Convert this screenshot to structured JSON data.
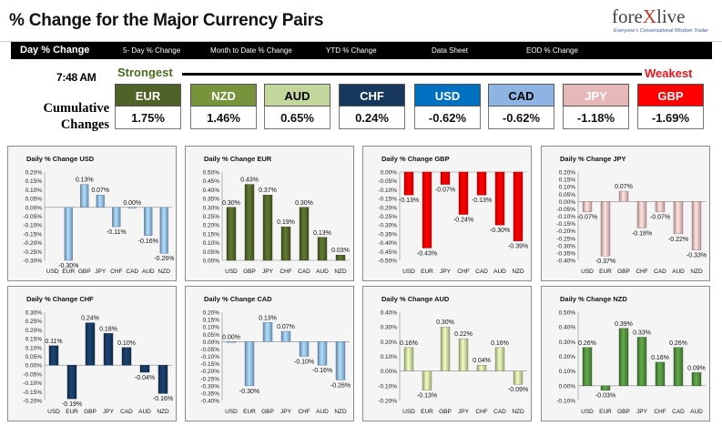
{
  "header": {
    "title": "% Change for the Major Currency Pairs",
    "logo": {
      "text_main": "fore",
      "text_accent": "X",
      "text_end": "live",
      "tagline": "Everyone's Conversational Wisdom Trader"
    }
  },
  "nav": {
    "tabs": [
      {
        "label": "Day % Change",
        "active": true
      },
      {
        "label": "5- Day % Change",
        "active": false
      },
      {
        "label": "Month to Date % Change",
        "active": false
      },
      {
        "label": "YTD % Change",
        "active": false
      },
      {
        "label": "Data Sheet",
        "active": false
      },
      {
        "label": "EOD % Change",
        "active": false
      }
    ]
  },
  "summary": {
    "time": "7:48 AM",
    "strongest_label": "Strongest",
    "weakest_label": "Weakest",
    "row_label_line1": "Cumulative",
    "row_label_line2": "Changes",
    "currencies": [
      {
        "code": "EUR",
        "value": "1.75%",
        "bg": "#4f6228",
        "fg": "#ffffff"
      },
      {
        "code": "NZD",
        "value": "1.46%",
        "bg": "#77933c",
        "fg": "#ffffff"
      },
      {
        "code": "AUD",
        "value": "0.65%",
        "bg": "#c3d69b",
        "fg": "#000000"
      },
      {
        "code": "CHF",
        "value": "0.24%",
        "bg": "#17375e",
        "fg": "#ffffff"
      },
      {
        "code": "USD",
        "value": "-0.62%",
        "bg": "#0070c0",
        "fg": "#ffffff"
      },
      {
        "code": "CAD",
        "value": "-0.62%",
        "bg": "#8db4e2",
        "fg": "#000000"
      },
      {
        "code": "JPY",
        "value": "-1.18%",
        "bg": "#e6b9b8",
        "fg": "#ffffff"
      },
      {
        "code": "GBP",
        "value": "-1.69%",
        "bg": "#ff0000",
        "fg": "#ffffff"
      }
    ]
  },
  "chart_data": [
    {
      "type": "bar",
      "title": "Daily % Change USD",
      "color": "#8db4e2",
      "categories": [
        "USD",
        "EUR",
        "GBP",
        "JPY",
        "CHF",
        "CAD",
        "AUD",
        "NZD"
      ],
      "values": [
        null,
        -0.3,
        0.13,
        0.07,
        -0.11,
        0.0,
        -0.16,
        -0.26
      ],
      "labels": [
        "",
        "-0.30%",
        "0.13%",
        "0.07%",
        "-0.11%",
        "0.00%",
        "-0.16%",
        "-0.26%"
      ],
      "ticks": [
        "0.20%",
        "0.15%",
        "0.10%",
        "0.05%",
        "0.00%",
        "-0.05%",
        "-0.10%",
        "-0.15%",
        "-0.20%",
        "-0.25%",
        "-0.30%"
      ],
      "ylim": [
        -0.3,
        0.2
      ]
    },
    {
      "type": "bar",
      "title": "Daily % Change EUR",
      "color": "#4f6228",
      "categories": [
        "USD",
        "GBP",
        "JPY",
        "CHF",
        "CAD",
        "AUD",
        "NZD"
      ],
      "values": [
        0.3,
        0.43,
        0.37,
        0.19,
        0.3,
        0.13,
        0.03
      ],
      "labels": [
        "0.30%",
        "0.43%",
        "0.37%",
        "0.19%",
        "0.30%",
        "0.13%",
        "0.03%"
      ],
      "ticks": [
        "0.50%",
        "0.45%",
        "0.40%",
        "0.35%",
        "0.30%",
        "0.25%",
        "0.20%",
        "0.15%",
        "0.10%",
        "0.05%",
        "0.00%"
      ],
      "ylim": [
        0.0,
        0.5
      ]
    },
    {
      "type": "bar",
      "title": "Daily % Change GBP",
      "color": "#ff0000",
      "categories": [
        "USD",
        "EUR",
        "JPY",
        "CHF",
        "CAD",
        "AUD",
        "NZD"
      ],
      "values": [
        -0.13,
        -0.43,
        -0.07,
        -0.24,
        -0.13,
        -0.3,
        -0.39
      ],
      "labels": [
        "-0.13%",
        "-0.43%",
        "-0.07%",
        "-0.24%",
        "-0.13%",
        "-0.30%",
        "-0.39%"
      ],
      "ticks": [
        "0.00%",
        "-0.05%",
        "-0.10%",
        "-0.15%",
        "-0.20%",
        "-0.25%",
        "-0.30%",
        "-0.35%",
        "-0.40%",
        "-0.45%",
        "-0.50%"
      ],
      "ylim": [
        -0.5,
        0.0
      ]
    },
    {
      "type": "bar",
      "title": "Daily % Change JPY",
      "color": "#e6b9b8",
      "categories": [
        "USD",
        "EUR",
        "GBP",
        "CHF",
        "CAD",
        "AUD",
        "NZD"
      ],
      "values": [
        -0.07,
        -0.37,
        0.07,
        -0.18,
        -0.07,
        -0.22,
        -0.33
      ],
      "labels": [
        "-0.07%",
        "-0.37%",
        "0.07%",
        "-0.18%",
        "-0.07%",
        "-0.22%",
        "-0.33%"
      ],
      "ticks": [
        "0.20%",
        "0.15%",
        "0.10%",
        "0.05%",
        "0.00%",
        "-0.05%",
        "-0.10%",
        "-0.15%",
        "-0.20%",
        "-0.25%",
        "-0.30%",
        "-0.35%",
        "-0.40%"
      ],
      "ylim": [
        -0.4,
        0.2
      ]
    },
    {
      "type": "bar",
      "title": "Daily % Change CHF",
      "color": "#17375e",
      "categories": [
        "USD",
        "EUR",
        "GBP",
        "JPY",
        "CAD",
        "AUD",
        "NZD"
      ],
      "values": [
        0.11,
        -0.19,
        0.24,
        0.18,
        0.1,
        -0.04,
        -0.16
      ],
      "labels": [
        "0.11%",
        "-0.19%",
        "0.24%",
        "0.18%",
        "0.10%",
        "-0.04%",
        "-0.16%"
      ],
      "ticks": [
        "0.30%",
        "0.25%",
        "0.20%",
        "0.15%",
        "0.10%",
        "0.05%",
        "0.00%",
        "-0.05%",
        "-0.10%",
        "-0.15%",
        "-0.20%"
      ],
      "ylim": [
        -0.2,
        0.3
      ]
    },
    {
      "type": "bar",
      "title": "Daily % Change CAD",
      "color": "#8db4e2",
      "categories": [
        "USD",
        "EUR",
        "GBP",
        "JPY",
        "CHF",
        "AUD",
        "NZD"
      ],
      "values": [
        0.0,
        -0.3,
        0.13,
        0.07,
        -0.1,
        -0.16,
        -0.26
      ],
      "labels": [
        "0.00%",
        "-0.30%",
        "0.13%",
        "0.07%",
        "-0.10%",
        "-0.16%",
        "-0.26%"
      ],
      "ticks": [
        "0.20%",
        "0.15%",
        "0.10%",
        "0.05%",
        "0.00%",
        "-0.05%",
        "-0.10%",
        "-0.15%",
        "-0.20%",
        "-0.25%",
        "-0.30%",
        "-0.35%",
        "-0.40%"
      ],
      "ylim": [
        -0.4,
        0.2
      ]
    },
    {
      "type": "bar",
      "title": "Daily % Change AUD",
      "color": "#c3d69b",
      "categories": [
        "USD",
        "EUR",
        "GBP",
        "JPY",
        "CHF",
        "CAD",
        "NZD"
      ],
      "values": [
        0.16,
        -0.13,
        0.3,
        0.22,
        0.04,
        0.16,
        -0.09
      ],
      "labels": [
        "0.16%",
        "-0.13%",
        "0.30%",
        "0.22%",
        "0.04%",
        "0.16%",
        "-0.09%"
      ],
      "ticks": [
        "0.40%",
        "0.30%",
        "0.20%",
        "0.10%",
        "0.00%",
        "-0.10%",
        "-0.20%"
      ],
      "ylim": [
        -0.2,
        0.4
      ]
    },
    {
      "type": "bar",
      "title": "Daily % Change NZD",
      "color": "#4f8a3c",
      "categories": [
        "USD",
        "EUR",
        "GBP",
        "JPY",
        "CHF",
        "CAD",
        "AUD"
      ],
      "values": [
        0.26,
        -0.03,
        0.39,
        0.33,
        0.16,
        0.26,
        0.09
      ],
      "labels": [
        "0.26%",
        "-0.03%",
        "0.39%",
        "0.33%",
        "0.16%",
        "0.26%",
        "0.09%"
      ],
      "ticks": [
        "0.50%",
        "0.40%",
        "0.30%",
        "0.20%",
        "0.10%",
        "0.00%",
        "-0.10%"
      ],
      "ylim": [
        -0.1,
        0.5
      ]
    }
  ]
}
